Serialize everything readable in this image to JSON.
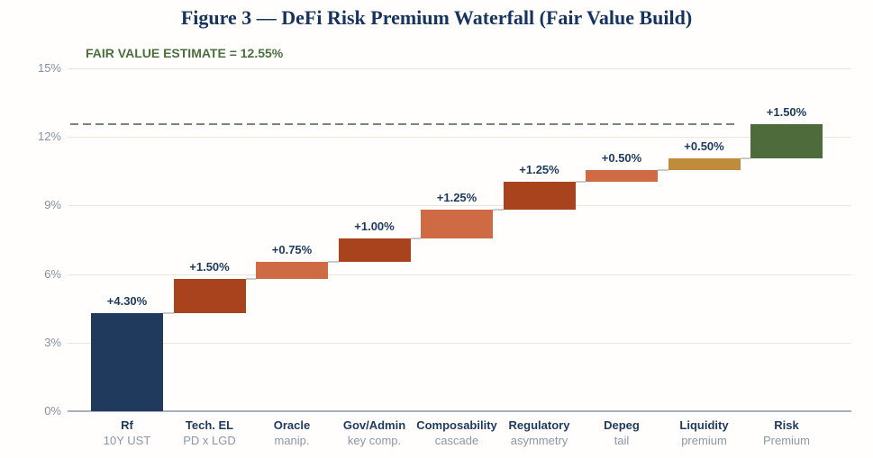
{
  "title": "Figure 3 — DeFi Risk Premium Waterfall (Fair Value Build)",
  "annotation": "FAIR VALUE ESTIMATE = 12.55%",
  "colors": {
    "title_navy": "#16345f",
    "annotation_green": "#4a7040",
    "value_label_navy": "#1c3a5e",
    "axis_text": "#8592a3",
    "grid": "#ece7da",
    "axis_line": "#a9b1bc",
    "reference_dash": "#79847a",
    "connector": "#cacaca"
  },
  "chart_data": {
    "type": "bar",
    "subtype": "waterfall",
    "title": "Figure 3 — DeFi Risk Premium Waterfall (Fair Value Build)",
    "annotation": "FAIR VALUE ESTIMATE = 12.55%",
    "total": 12.55,
    "ylim": [
      0,
      15
    ],
    "grid": true,
    "legend": "none",
    "reference_line": {
      "value": 12.55,
      "style": "dashed",
      "color": "#79847a"
    },
    "y_ticks": [
      {
        "value": 0,
        "label": "0%"
      },
      {
        "value": 3,
        "label": "3%"
      },
      {
        "value": 6,
        "label": "6%"
      },
      {
        "value": 9,
        "label": "9%"
      },
      {
        "value": 12,
        "label": "12%"
      },
      {
        "value": 15,
        "label": "15%"
      }
    ],
    "steps": [
      {
        "category": "Rf",
        "sublabel": "10Y UST",
        "delta": 4.3,
        "label": "+4.30%",
        "start": 0,
        "end": 4.3,
        "color": "#1f3a5c"
      },
      {
        "category": "Tech. EL",
        "sublabel": "PD x LGD",
        "delta": 1.5,
        "label": "+1.50%",
        "start": 4.3,
        "end": 5.8,
        "color": "#a8431e"
      },
      {
        "category": "Oracle",
        "sublabel": "manip.",
        "delta": 0.75,
        "label": "+0.75%",
        "start": 5.8,
        "end": 6.55,
        "color": "#ce6a44"
      },
      {
        "category": "Gov/Admin",
        "sublabel": "key comp.",
        "delta": 1.0,
        "label": "+1.00%",
        "start": 6.55,
        "end": 7.55,
        "color": "#a8431e"
      },
      {
        "category": "Composability",
        "sublabel": "cascade",
        "delta": 1.25,
        "label": "+1.25%",
        "start": 7.55,
        "end": 8.8,
        "color": "#ce6a44"
      },
      {
        "category": "Regulatory",
        "sublabel": "asymmetry",
        "delta": 1.25,
        "label": "+1.25%",
        "start": 8.8,
        "end": 10.05,
        "color": "#a8431e"
      },
      {
        "category": "Depeg",
        "sublabel": "tail",
        "delta": 0.5,
        "label": "+0.50%",
        "start": 10.05,
        "end": 10.55,
        "color": "#ce6a44"
      },
      {
        "category": "Liquidity",
        "sublabel": "premium",
        "delta": 0.5,
        "label": "+0.50%",
        "start": 10.55,
        "end": 11.05,
        "color": "#bf8c3c"
      },
      {
        "category": "Risk",
        "sublabel": "Premium",
        "delta": 1.5,
        "label": "+1.50%",
        "start": 11.05,
        "end": 12.55,
        "color": "#4e6c3b"
      }
    ]
  }
}
